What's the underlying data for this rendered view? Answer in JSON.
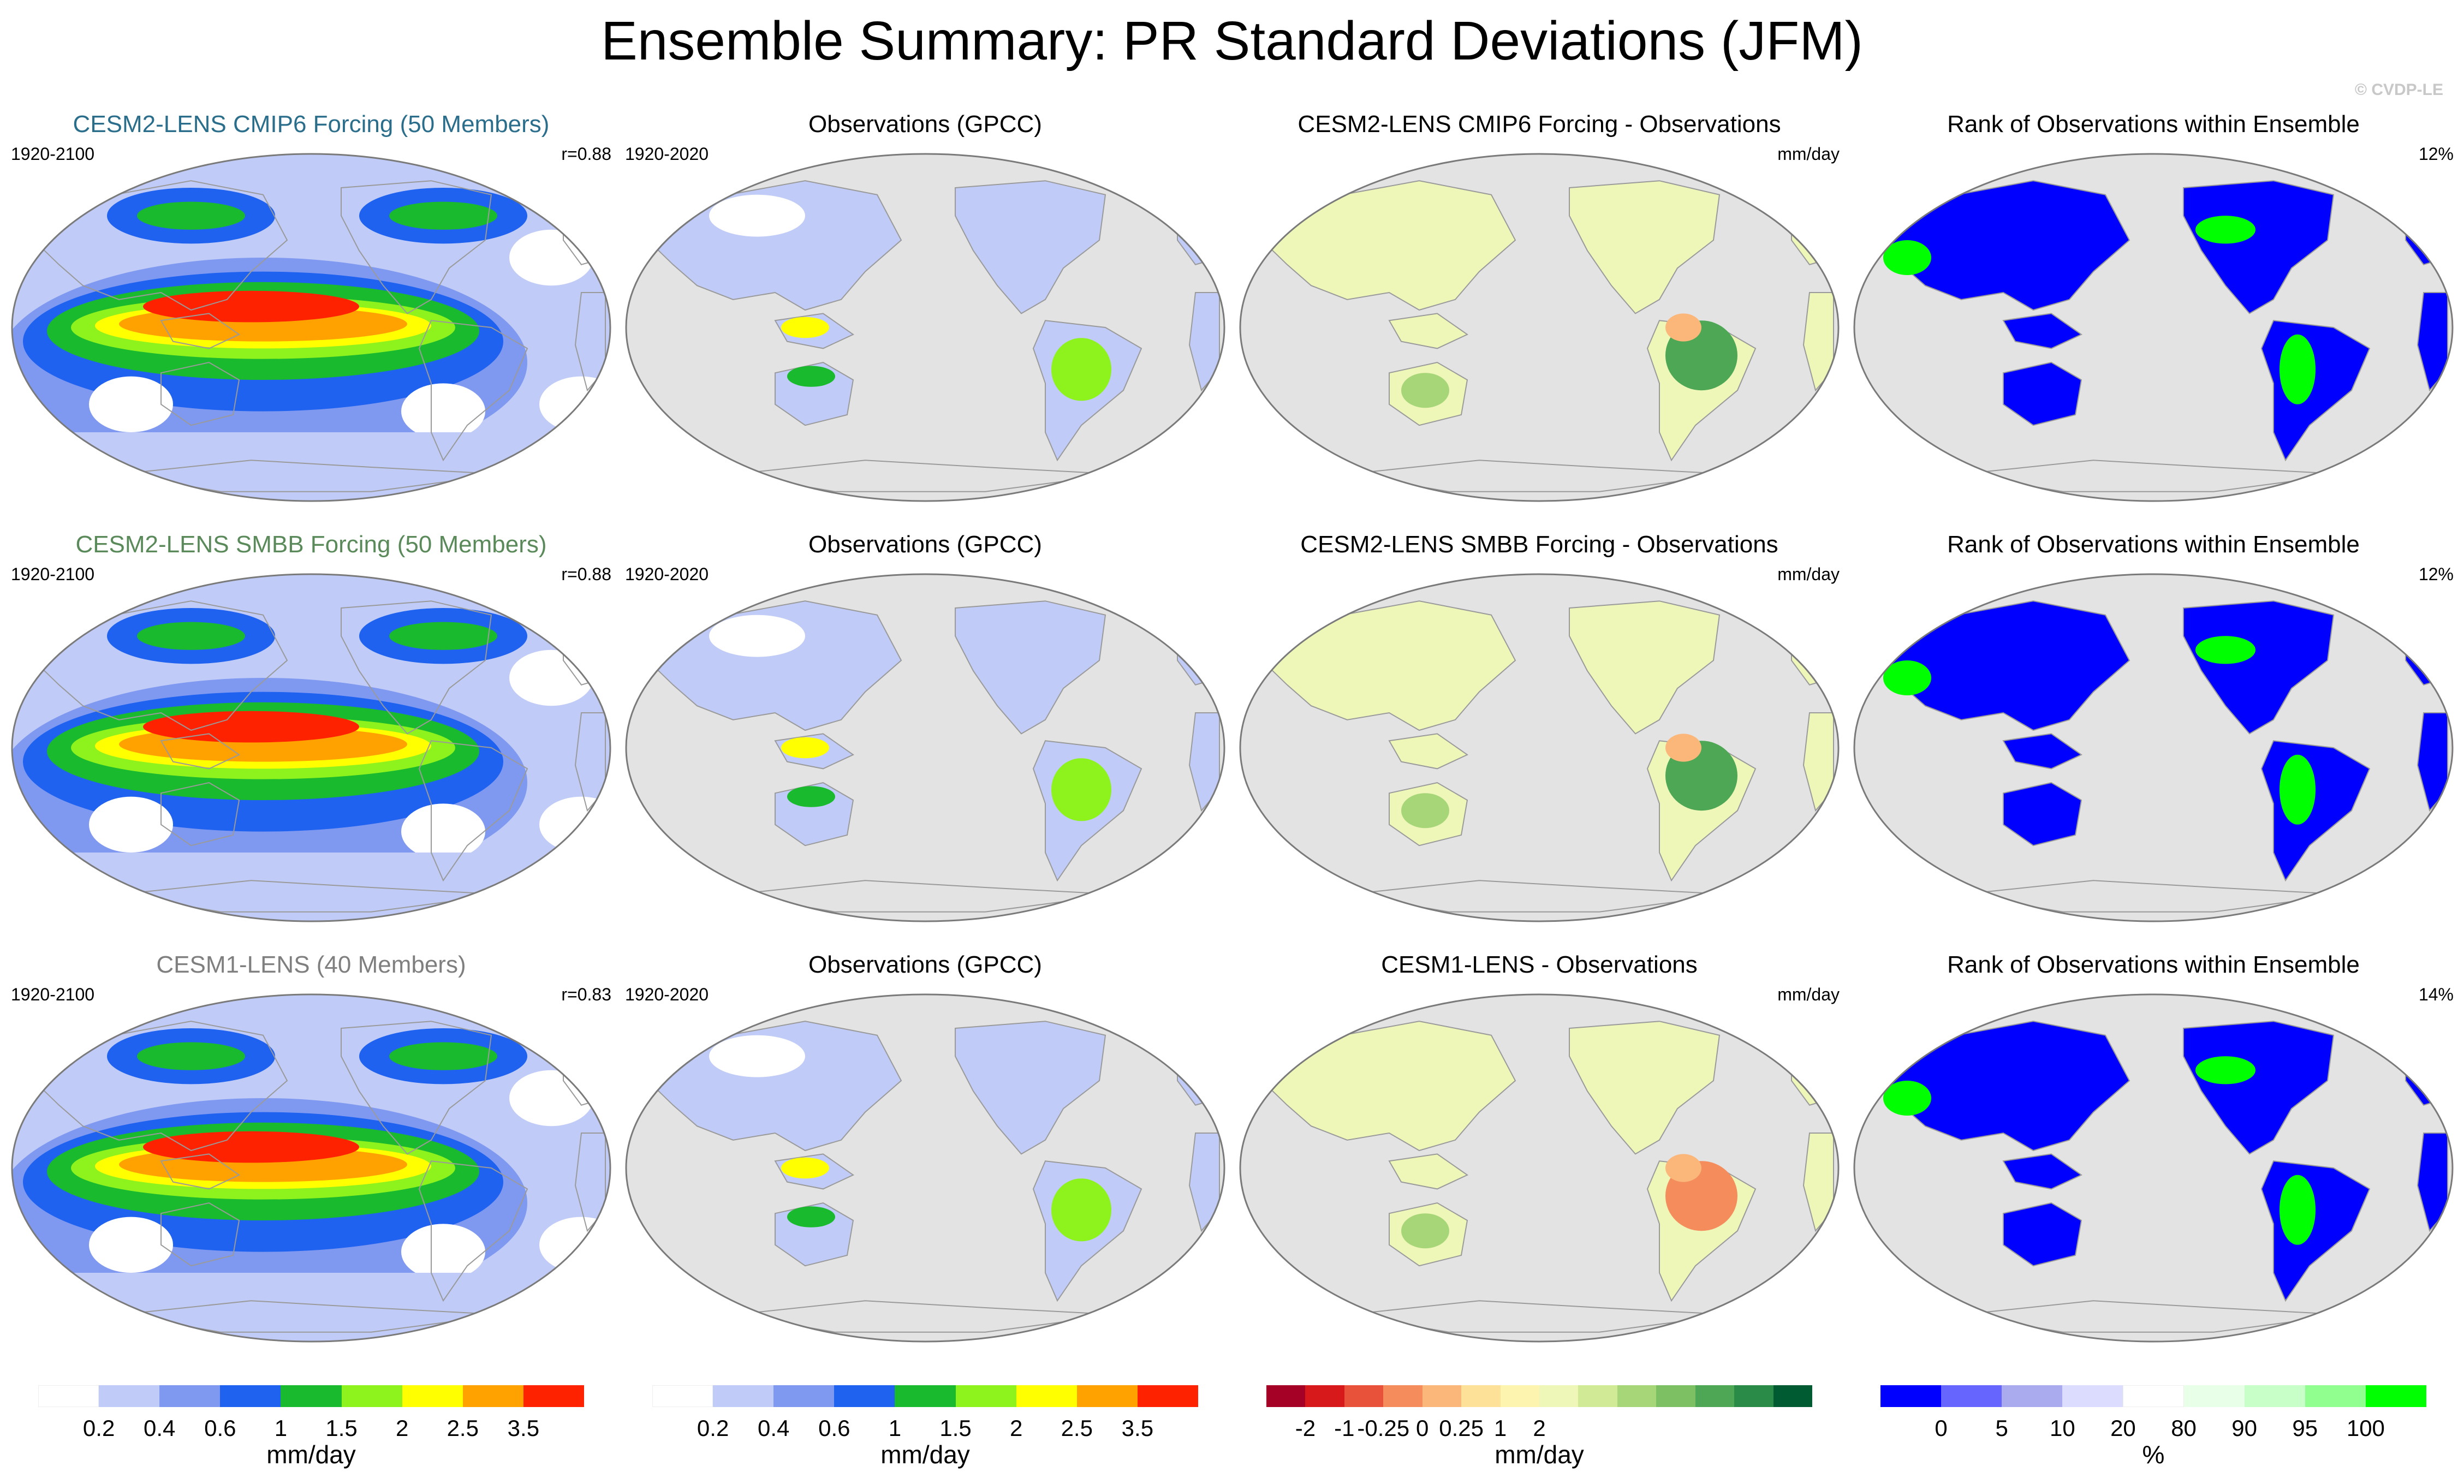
{
  "title": "Ensemble Summary: PR Standard Deviations (JFM)",
  "watermark": "© CVDP-LE",
  "rows": [
    {
      "model": {
        "title": "CESM2-LENS CMIP6 Forcing (50 Members)",
        "title_color": "#2b6e8c",
        "years": "1920-2100",
        "corr": "r=0.88"
      },
      "obs": {
        "title": "Observations (GPCC)",
        "years": "1920-2020"
      },
      "diff": {
        "title": "CESM2-LENS CMIP6 Forcing - Observations",
        "unit": "mm/day"
      },
      "rank": {
        "title": "Rank of Observations within Ensemble",
        "pct": "12%"
      }
    },
    {
      "model": {
        "title": "CESM2-LENS SMBB Forcing (50 Members)",
        "title_color": "#5a8a5a",
        "years": "1920-2100",
        "corr": "r=0.88"
      },
      "obs": {
        "title": "Observations (GPCC)",
        "years": "1920-2020"
      },
      "diff": {
        "title": "CESM2-LENS SMBB Forcing - Observations",
        "unit": "mm/day"
      },
      "rank": {
        "title": "Rank of Observations within Ensemble",
        "pct": "12%"
      }
    },
    {
      "model": {
        "title": "CESM1-LENS (40 Members)",
        "title_color": "#7f7f7f",
        "years": "1920-2100",
        "corr": "r=0.83"
      },
      "obs": {
        "title": "Observations (GPCC)",
        "years": "1920-2020"
      },
      "diff": {
        "title": "CESM1-LENS - Observations",
        "unit": "mm/day"
      },
      "rank": {
        "title": "Rank of Observations within Ensemble",
        "pct": "14%"
      }
    }
  ],
  "colorbars": {
    "std": {
      "colors": [
        "#ffffff",
        "#c0ccf7",
        "#8099f0",
        "#1f62f0",
        "#1aba2e",
        "#8ef21d",
        "#ffff00",
        "#ffa200",
        "#ff2200"
      ],
      "ticks": [
        "0.2",
        "0.4",
        "0.6",
        "1",
        "1.5",
        "2",
        "2.5",
        "3.5"
      ],
      "unit": "mm/day"
    },
    "diff": {
      "colors": [
        "#a50026",
        "#d7191c",
        "#e8523a",
        "#f48c5c",
        "#fbb77a",
        "#fee199",
        "#fdf4b0",
        "#eef6b8",
        "#d0ea96",
        "#a7d678",
        "#7dc063",
        "#4da755",
        "#2a8b48",
        "#005a32"
      ],
      "ticks": [
        "-2",
        "-1",
        "-0.25",
        "0",
        "0.25",
        "1",
        "2"
      ],
      "unit": "mm/day"
    },
    "rank": {
      "colors": [
        "#0000ff",
        "#6666ff",
        "#aaaaee",
        "#dcdcff",
        "#ffffff",
        "#e8ffe8",
        "#c8ffc8",
        "#90ff90",
        "#00ff00"
      ],
      "ticks": [
        "0",
        "5",
        "10",
        "20",
        "80",
        "90",
        "95",
        "100"
      ],
      "unit": "%"
    }
  },
  "map_colors": {
    "ocean_gray": "#e3e3e3",
    "land_outline": "#9a9a9a"
  }
}
